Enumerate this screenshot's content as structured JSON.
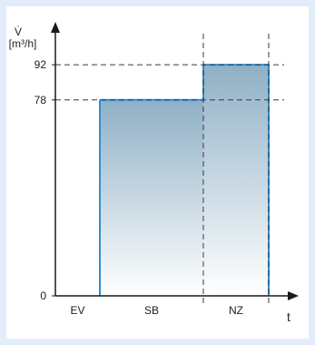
{
  "chart_data": {
    "type": "bar",
    "ylabel_symbol": "V̇",
    "ylabel_unit": "[m³/h]",
    "xlabel": "t",
    "categories": [
      "EV",
      "SB",
      "NZ"
    ],
    "values": [
      0,
      78,
      92
    ],
    "yticks": [
      0,
      78,
      92
    ],
    "ylim": [
      0,
      108
    ],
    "grid": false,
    "reference_lines": [
      78,
      92
    ],
    "colors": {
      "fill_top": "#8fb0c6",
      "fill_bottom": "#ffffff",
      "outline": "#2f8fd6",
      "axis": "#1a1a1a",
      "dash": "#3a3a3a",
      "frame": "#e1eef9"
    }
  }
}
